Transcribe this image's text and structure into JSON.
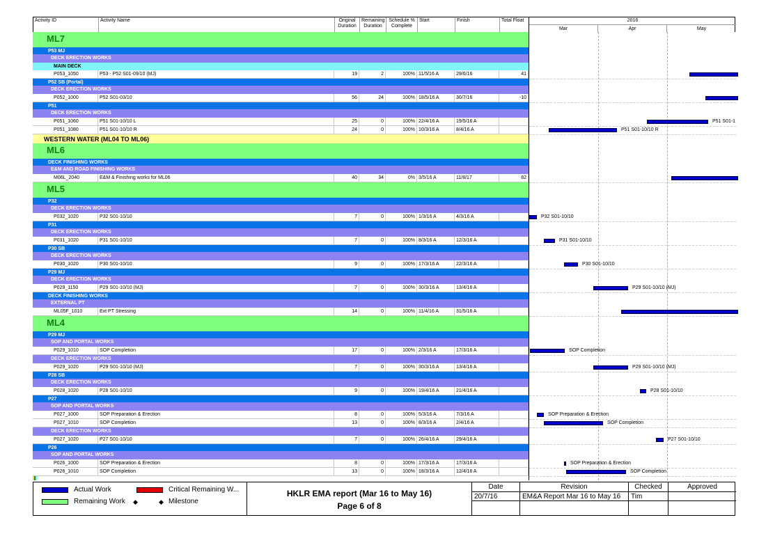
{
  "columns": {
    "activity_id": "Activity ID",
    "activity_name": "Activity Name",
    "original_duration": "Original Duration",
    "remaining_duration": "Remaining Duration",
    "schedule_pct": "Schedule % Complete",
    "start": "Start",
    "finish": "Finish",
    "total_float": "Total Float"
  },
  "timescale": {
    "year": "2016",
    "months": [
      "Mar",
      "Apr",
      "May"
    ]
  },
  "rows": [
    {
      "kind": "l1",
      "text": "ML7"
    },
    {
      "kind": "l2",
      "text": "P53 MJ"
    },
    {
      "kind": "l3",
      "text": "DECK ERECTION WORKS"
    },
    {
      "kind": "l4",
      "text": "MAIN DECK"
    },
    {
      "kind": "act",
      "id": "P053_1050",
      "name": "P53 - P52 S01-09/10 (MJ)",
      "od": "19",
      "rd": "2",
      "pct": "100%",
      "start": "11/5/16 A",
      "finish": "29/6/16",
      "tf": "41",
      "bar": {
        "x1": 230,
        "x2": 300
      }
    },
    {
      "kind": "l2",
      "text": "P52 SB (Portal)"
    },
    {
      "kind": "l3",
      "text": "DECK ERECTION WORKS"
    },
    {
      "kind": "act",
      "id": "P052_1000",
      "name": "P52 S01-03/10",
      "od": "56",
      "rd": "24",
      "pct": "100%",
      "start": "18/5/16 A",
      "finish": "30/7/16",
      "tf": "-10",
      "bar": {
        "x1": 253,
        "x2": 300
      }
    },
    {
      "kind": "l2",
      "text": "P51"
    },
    {
      "kind": "l3",
      "text": "DECK ERECTION WORKS"
    },
    {
      "kind": "act",
      "id": "P051_1060",
      "name": "P51 S01-10/10 L",
      "od": "25",
      "rd": "0",
      "pct": "100%",
      "start": "22/4/16 A",
      "finish": "19/5/16 A",
      "tf": "",
      "bar": {
        "x1": 169,
        "x2": 257
      },
      "label": "P51 S01-1"
    },
    {
      "kind": "act",
      "id": "P051_1080",
      "name": "P51 S01-10/10 R",
      "od": "24",
      "rd": "0",
      "pct": "100%",
      "start": "10/3/16 A",
      "finish": "8/4/16 A",
      "tf": "",
      "bar": {
        "x1": 28,
        "x2": 126
      },
      "label": "P51 S01-10/10 R"
    },
    {
      "kind": "l1y",
      "text": "WESTERN WATER (ML04 TO ML06)"
    },
    {
      "kind": "l1",
      "text": "ML6"
    },
    {
      "kind": "l2",
      "text": "DECK FINISHING WORKS"
    },
    {
      "kind": "l3",
      "text": "E&M AND ROAD FINISHING WORKS"
    },
    {
      "kind": "act",
      "id": "M06L_2040",
      "name": "E&M & Finishing works for ML06",
      "od": "40",
      "rd": "34",
      "pct": "0%",
      "start": "3/5/16 A",
      "finish": "11/8/17",
      "tf": "82",
      "bar": {
        "x1": 204,
        "x2": 300
      }
    },
    {
      "kind": "l1",
      "text": "ML5"
    },
    {
      "kind": "l2",
      "text": "P32"
    },
    {
      "kind": "l3",
      "text": "DECK ERECTION WORKS"
    },
    {
      "kind": "act",
      "id": "P032_1020",
      "name": "P32 S01-10/10",
      "od": "7",
      "rd": "0",
      "pct": "100%",
      "start": "1/3/16 A",
      "finish": "4/3/16 A",
      "tf": "",
      "bar": {
        "x1": 0,
        "x2": 11
      },
      "label": "P32 S01-10/10"
    },
    {
      "kind": "l2",
      "text": "P31"
    },
    {
      "kind": "l3",
      "text": "DECK ERECTION WORKS"
    },
    {
      "kind": "act",
      "id": "P031_1020",
      "name": "P31 S01-10/10",
      "od": "7",
      "rd": "0",
      "pct": "100%",
      "start": "8/3/16 A",
      "finish": "12/3/16 A",
      "tf": "",
      "bar": {
        "x1": 21,
        "x2": 37
      },
      "label": "P31 S01-10/10"
    },
    {
      "kind": "l2",
      "text": "P30 SB"
    },
    {
      "kind": "l3",
      "text": "DECK ERECTION WORKS"
    },
    {
      "kind": "act",
      "id": "P030_1020",
      "name": "P30 S01-10/10",
      "od": "9",
      "rd": "0",
      "pct": "100%",
      "start": "17/3/16 A",
      "finish": "22/3/16 A",
      "tf": "",
      "bar": {
        "x1": 50,
        "x2": 70
      },
      "label": "P30 S01-10/10"
    },
    {
      "kind": "l2",
      "text": "P29 MJ"
    },
    {
      "kind": "l3",
      "text": "DECK ERECTION WORKS"
    },
    {
      "kind": "act",
      "id": "P029_1150",
      "name": "P29 S01-10/10 (MJ)",
      "od": "7",
      "rd": "0",
      "pct": "100%",
      "start": "30/3/16 A",
      "finish": "13/4/16 A",
      "tf": "",
      "bar": {
        "x1": 92,
        "x2": 142
      },
      "label": "P29 S01-10/10 (MJ)"
    },
    {
      "kind": "l2",
      "text": "DECK FINISHING WORKS"
    },
    {
      "kind": "l3",
      "text": "EXTERNAL PT"
    },
    {
      "kind": "act",
      "id": "ML05F_1010",
      "name": "Ext PT Stressing",
      "od": "14",
      "rd": "0",
      "pct": "100%",
      "start": "11/4/16 A",
      "finish": "31/5/16 A",
      "tf": "",
      "bar": {
        "x1": 132,
        "x2": 300
      }
    },
    {
      "kind": "l1",
      "text": "ML4"
    },
    {
      "kind": "l2",
      "text": "P29 MJ"
    },
    {
      "kind": "l3",
      "text": "SOP AND PORTAL WORKS"
    },
    {
      "kind": "act",
      "id": "P029_1010",
      "name": "SOP Completion",
      "od": "17",
      "rd": "0",
      "pct": "100%",
      "start": "2/3/16 A",
      "finish": "17/3/16 A",
      "tf": "",
      "bar": {
        "x1": 1,
        "x2": 51
      },
      "label": "SOP Completion"
    },
    {
      "kind": "l3",
      "text": "DECK ERECTION WORKS"
    },
    {
      "kind": "act",
      "id": "P029_1020",
      "name": "P29 S01-10/10 (MJ)",
      "od": "7",
      "rd": "0",
      "pct": "100%",
      "start": "30/3/16 A",
      "finish": "13/4/16 A",
      "tf": "",
      "bar": {
        "x1": 92,
        "x2": 142
      },
      "label": "P29 S01-10/10 (MJ)"
    },
    {
      "kind": "l2",
      "text": "P28 SB"
    },
    {
      "kind": "l3",
      "text": "DECK ERECTION WORKS"
    },
    {
      "kind": "act",
      "id": "P028_1020",
      "name": "P28 S01-10/10",
      "od": "9",
      "rd": "0",
      "pct": "100%",
      "start": "19/4/16 A",
      "finish": "21/4/16 A",
      "tf": "",
      "bar": {
        "x1": 159,
        "x2": 168
      },
      "label": "P28 S01-10/10"
    },
    {
      "kind": "l2",
      "text": "P27"
    },
    {
      "kind": "l3",
      "text": "SOP AND PORTAL WORKS"
    },
    {
      "kind": "act",
      "id": "P027_1000",
      "name": "SOP Preparation & Erection",
      "od": "8",
      "rd": "0",
      "pct": "100%",
      "start": "5/3/16 A",
      "finish": "7/3/16 A",
      "tf": "",
      "bar": {
        "x1": 11,
        "x2": 21
      },
      "label": "SOP Preparation & Erection"
    },
    {
      "kind": "act",
      "id": "P027_1010",
      "name": "SOP Completion",
      "od": "13",
      "rd": "0",
      "pct": "100%",
      "start": "8/3/16 A",
      "finish": "2/4/16 A",
      "tf": "",
      "bar": {
        "x1": 21,
        "x2": 106
      },
      "label": "SOP Completion"
    },
    {
      "kind": "l3",
      "text": "DECK ERECTION WORKS"
    },
    {
      "kind": "act",
      "id": "P027_1020",
      "name": "P27 S01-10/10",
      "od": "7",
      "rd": "0",
      "pct": "100%",
      "start": "26/4/16 A",
      "finish": "29/4/16 A",
      "tf": "",
      "bar": {
        "x1": 182,
        "x2": 193
      },
      "label": "P27 S01-10/10"
    },
    {
      "kind": "l2",
      "text": "P26"
    },
    {
      "kind": "l3",
      "text": "SOP AND PORTAL WORKS"
    },
    {
      "kind": "act",
      "id": "P026_1000",
      "name": "SOP Preparation & Erection",
      "od": "8",
      "rd": "0",
      "pct": "100%",
      "start": "17/3/16 A",
      "finish": "17/3/16 A",
      "tf": "",
      "bar": {
        "x1": 50,
        "x2": 53
      },
      "label": "SOP Preparation & Erection"
    },
    {
      "kind": "act",
      "id": "P026_1010",
      "name": "SOP Completion",
      "od": "13",
      "rd": "0",
      "pct": "100%",
      "start": "18/3/16 A",
      "finish": "12/4/16 A",
      "tf": "",
      "bar": {
        "x1": 53,
        "x2": 139
      },
      "label": "SOP Completion"
    }
  ],
  "legend": {
    "actual_work": "Actual Work",
    "critical_remaining": "Critical Remaining W...",
    "remaining_work": "Remaining Work",
    "milestone": "Milestone",
    "colors": {
      "actual": "#0000c8",
      "critical": "#e00000",
      "remaining": "#7fff7f"
    }
  },
  "report": {
    "title": "HKLR EMA report (Mar 16 to May 16)",
    "page": "Page 6 of 8"
  },
  "signoff": {
    "headers": [
      "Date",
      "Revision",
      "Checked",
      "Approved"
    ],
    "values": [
      "20/7/16",
      "EM&A Report Mar 16 to May 16",
      "Tim",
      ""
    ]
  }
}
